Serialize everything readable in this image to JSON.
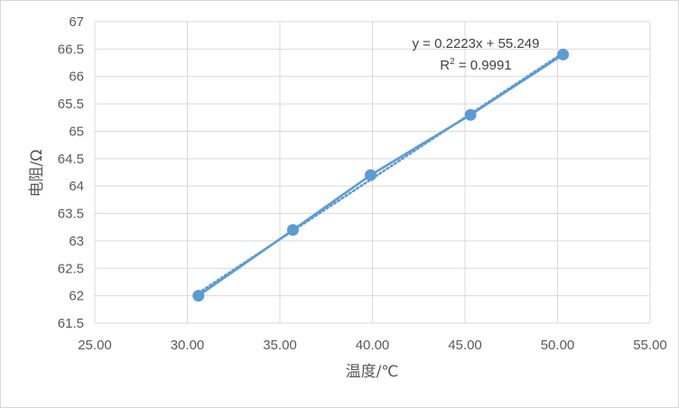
{
  "chart_data": {
    "type": "scatter",
    "title": "",
    "xlabel": "温度/℃",
    "ylabel": "电阻/Ω",
    "xlim": [
      25,
      55
    ],
    "ylim": [
      61.5,
      67
    ],
    "x_ticks": [
      "25.00",
      "30.00",
      "35.00",
      "40.00",
      "45.00",
      "50.00",
      "55.00"
    ],
    "y_ticks": [
      "61.5",
      "62",
      "62.5",
      "63",
      "63.5",
      "64",
      "64.5",
      "65",
      "65.5",
      "66",
      "66.5",
      "67"
    ],
    "grid": true,
    "series": [
      {
        "x": [
          30.6,
          35.7,
          39.9,
          45.3,
          50.3
        ],
        "y": [
          62.0,
          63.2,
          64.2,
          65.3,
          66.4
        ],
        "color": "#5b9bd5",
        "line": "solid",
        "markers": true
      }
    ],
    "trendline": {
      "type": "linear",
      "style": "dotted",
      "slope": 0.2223,
      "intercept": 55.249,
      "equation": "y = 0.2223x + 55.249",
      "r_squared_label": "R",
      "r_squared_sup": "2",
      "r_squared_value": " = 0.9991"
    }
  }
}
